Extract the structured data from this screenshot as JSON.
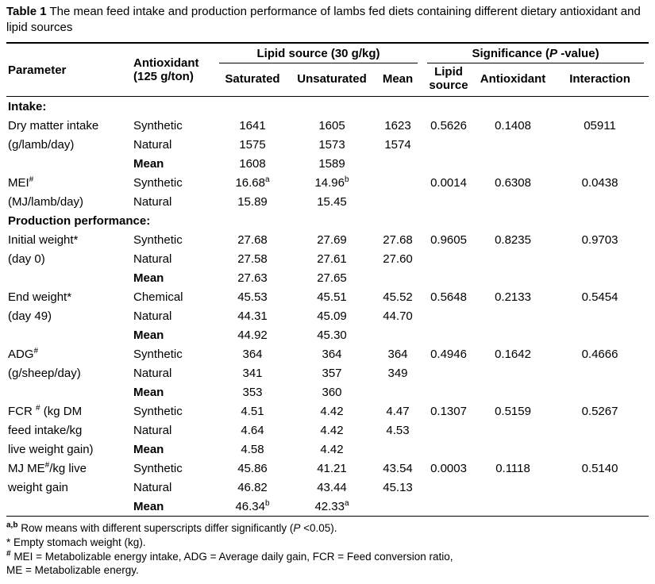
{
  "page": {
    "title": "**Table 1** The mean feed intake and production performance of lambs fed diets containing different dietary antioxidant and lipid sources"
  },
  "table": {
    "headers": {
      "parameter": "Parameter",
      "antioxidant": "Antioxidant (125 g/ton)",
      "lipid_group": "Lipid source (30 g/kg)",
      "significance_group": "Significance (*P* -value)",
      "saturated": "Saturated",
      "unsaturated": "Unsaturated",
      "mean": "Mean",
      "p_lipid": "Lipid source",
      "p_antioxidant": "Antioxidant",
      "p_interaction": "Interaction"
    },
    "rows": [
      {
        "section": "Intake:"
      },
      {
        "param": "Dry matter intake",
        "antiox": "Synthetic",
        "sat": "1641",
        "unsat": "1605",
        "mean": "1623",
        "p1": "0.5626",
        "p2": "0.1408",
        "p3": "05911"
      },
      {
        "param": "(g/lamb/day)",
        "antiox": "Natural",
        "sat": "1575",
        "unsat": "1573",
        "mean": "1574",
        "p1": "",
        "p2": "",
        "p3": ""
      },
      {
        "param": "",
        "antiox": "Mean",
        "bold": true,
        "sat": "1608",
        "unsat": "1589",
        "mean": "",
        "p1": "",
        "p2": "",
        "p3": ""
      },
      {
        "param": "MEI^{#}",
        "antiox": "Synthetic",
        "sat": "16.68^{a}",
        "unsat": "14.96^{b}",
        "mean": "",
        "p1": "0.0014",
        "p2": "0.6308",
        "p3": "0.0438"
      },
      {
        "param": "(MJ/lamb/day)",
        "antiox": "Natural",
        "sat": "15.89",
        "unsat": "15.45",
        "mean": "",
        "p1": "",
        "p2": "",
        "p3": ""
      },
      {
        "section": "Production performance:"
      },
      {
        "param": "Initial  weight*",
        "antiox": "Synthetic",
        "sat": "27.68",
        "unsat": "27.69",
        "mean": "27.68",
        "p1": "0.9605",
        "p2": "0.8235",
        "p3": "0.9703"
      },
      {
        "param": "(day 0)",
        "antiox": "Natural",
        "sat": "27.58",
        "unsat": "27.61",
        "mean": "27.60",
        "p1": "",
        "p2": "",
        "p3": ""
      },
      {
        "param": "",
        "antiox": "Mean",
        "bold": true,
        "sat": "27.63",
        "unsat": "27.65",
        "mean": "",
        "p1": "",
        "p2": "",
        "p3": ""
      },
      {
        "param": "End weight*",
        "antiox": "Chemical",
        "sat": "45.53",
        "unsat": "45.51",
        "mean": "45.52",
        "p1": "0.5648",
        "p2": "0.2133",
        "p3": "0.5454"
      },
      {
        "param": "(day 49)",
        "antiox": "Natural",
        "sat": "44.31",
        "unsat": "45.09",
        "mean": "44.70",
        "p1": "",
        "p2": "",
        "p3": ""
      },
      {
        "param": "",
        "antiox": "Mean",
        "bold": true,
        "sat": "44.92",
        "unsat": "45.30",
        "mean": "",
        "p1": "",
        "p2": "",
        "p3": ""
      },
      {
        "param": "ADG^{#}",
        "antiox": "Synthetic",
        "sat": "364",
        "unsat": "364",
        "mean": "364",
        "p1": "0.4946",
        "p2": "0.1642",
        "p3": "0.4666"
      },
      {
        "param": "(g/sheep/day)",
        "antiox": "Natural",
        "sat": "341",
        "unsat": "357",
        "mean": "349",
        "p1": "",
        "p2": "",
        "p3": ""
      },
      {
        "param": "",
        "antiox": "Mean",
        "bold": true,
        "sat": "353",
        "unsat": "360",
        "mean": "",
        "p1": "",
        "p2": "",
        "p3": ""
      },
      {
        "param": "FCR ^{#} (kg DM",
        "antiox": "Synthetic",
        "sat": "4.51",
        "unsat": "4.42",
        "mean": "4.47",
        "p1": "0.1307",
        "p2": "0.5159",
        "p3": "0.5267"
      },
      {
        "param": "feed intake/kg",
        "antiox": "Natural",
        "sat": "4.64",
        "unsat": "4.42",
        "mean": "4.53",
        "p1": "",
        "p2": "",
        "p3": ""
      },
      {
        "param": "live weight gain)",
        "antiox": "Mean",
        "bold": true,
        "sat": "4.58",
        "unsat": "4.42",
        "mean": "",
        "p1": "",
        "p2": "",
        "p3": ""
      },
      {
        "param": "MJ ME^{#}/kg live",
        "antiox": "Synthetic",
        "sat": "45.86",
        "unsat": "41.21",
        "mean": "43.54",
        "p1": "0.0003",
        "p2": "0.1118",
        "p3": "0.5140"
      },
      {
        "param": "weight gain",
        "antiox": "Natural",
        "sat": "46.82",
        "unsat": "43.44",
        "mean": "45.13",
        "p1": "",
        "p2": "",
        "p3": ""
      },
      {
        "param": "",
        "antiox": "Mean",
        "bold": true,
        "sat": "46.34^{b}",
        "unsat": "42.33^{a}",
        "mean": "",
        "p1": "",
        "p2": "",
        "p3": ""
      }
    ]
  },
  "footnotes": [
    "**^{a,b}**  Row means with different superscripts differ significantly (*P* <0.05).",
    "* Empty stomach weight (kg).",
    "**^{#}**  MEI = Metabolizable energy intake, ADG =  Average daily gain, FCR = Feed conversion ratio,",
    "ME = Metabolizable energy."
  ]
}
